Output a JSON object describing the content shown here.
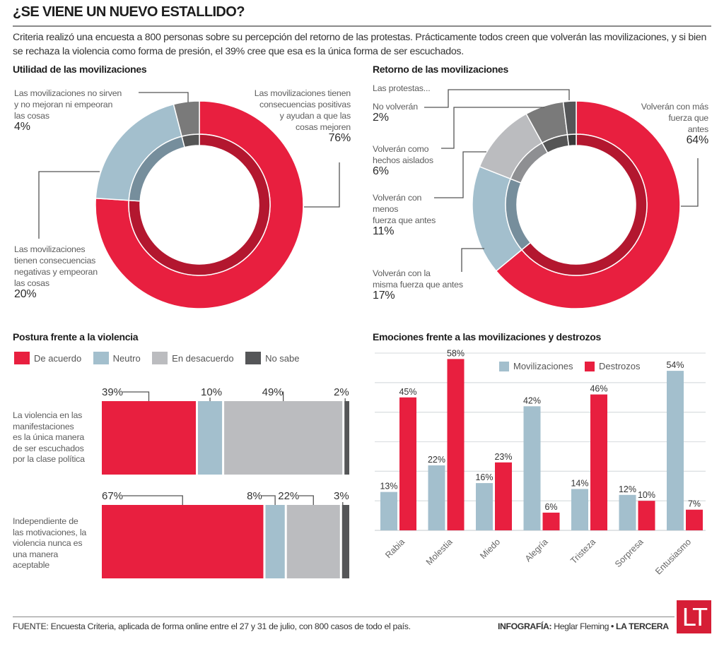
{
  "title": "¿SE VIENE UN NUEVO ESTALLIDO?",
  "intro": "Criteria realizó una encuesta a 800 personas sobre su percepción del retorno de las protestas. Prácticamente todos creen que volverán las movilizaciones, y si bien se rechaza la violencia como forma de presión, el 39% cree que esa es la única forma de ser escuchados.",
  "colors": {
    "red": "#e81f3f",
    "red_dark": "#b3172f",
    "blue": "#a3bfcd",
    "blue_dark": "#768e9c",
    "gray_light": "#bbbcbf",
    "gray_light_dark": "#8e8f92",
    "gray_mid": "#7a7a7a",
    "gray_mid_dark": "#555555",
    "gray_dark": "#555658",
    "gray_dark_dark": "#3a3a3a"
  },
  "chart_data": [
    {
      "type": "pie",
      "variant": "donut",
      "title": "Utilidad de las movilizaciones",
      "slices": [
        {
          "label": "Las movilizaciones tienen consecuencias positivas y ayudan a que las cosas mejoren",
          "value": 76,
          "display": "76%",
          "color": "red"
        },
        {
          "label": "Las movilizaciones tienen consecuencias negativas y empeoran las cosas",
          "value": 20,
          "display": "20%",
          "color": "blue"
        },
        {
          "label": "Las movilizaciones no sirven y no mejoran ni empeoran las cosas",
          "value": 4,
          "display": "4%",
          "color": "gray_mid"
        }
      ]
    },
    {
      "type": "pie",
      "variant": "donut",
      "title": "Retorno de las movilizaciones",
      "subtitle": "Las protestas...",
      "slices": [
        {
          "label": "Volverán con más fuerza que antes",
          "value": 64,
          "display": "64%",
          "color": "red"
        },
        {
          "label": "Volverán con la misma fuerza que antes",
          "value": 17,
          "display": "17%",
          "color": "blue"
        },
        {
          "label": "Volverán con menos fuerza que antes",
          "value": 11,
          "display": "11%",
          "color": "gray_light"
        },
        {
          "label": "Volverán como hechos aislados",
          "value": 6,
          "display": "6%",
          "color": "gray_mid"
        },
        {
          "label": "No volverán",
          "value": 2,
          "display": "2%",
          "color": "gray_dark"
        }
      ]
    },
    {
      "type": "bar",
      "orientation": "horizontal",
      "stacked": true,
      "title": "Postura frente a la violencia",
      "legend": [
        "De acuerdo",
        "Neutro",
        "En desacuerdo",
        "No sabe"
      ],
      "legend_colors": [
        "red",
        "blue",
        "gray_light",
        "gray_dark"
      ],
      "legend_position": "top-left",
      "categories": [
        "La violencia en las manifestaciones es la única manera de ser escuchados por la clase política",
        "Independiente de las motivaciones, la violencia nunca es una manera aceptable"
      ],
      "series": [
        {
          "name": "De acuerdo",
          "values": [
            39,
            67
          ],
          "display": [
            "39%",
            "67%"
          ]
        },
        {
          "name": "Neutro",
          "values": [
            10,
            8
          ],
          "display": [
            "10%",
            "8%"
          ]
        },
        {
          "name": "En desacuerdo",
          "values": [
            49,
            22
          ],
          "display": [
            "49%",
            "22%"
          ]
        },
        {
          "name": "No sabe",
          "values": [
            2,
            3
          ],
          "display": [
            "2%",
            "3%"
          ]
        }
      ]
    },
    {
      "type": "bar",
      "orientation": "vertical",
      "title": "Emociones frente a las movilizaciones y destrozos",
      "categories": [
        "Rabia",
        "Molestia",
        "Miedo",
        "Alegría",
        "Tristeza",
        "Sorpresa",
        "Entusiasmo"
      ],
      "series": [
        {
          "name": "Movilizaciones",
          "color": "blue",
          "values": [
            13,
            22,
            16,
            42,
            14,
            12,
            54
          ]
        },
        {
          "name": "Destrozos",
          "color": "red",
          "values": [
            45,
            58,
            23,
            6,
            46,
            10,
            7
          ]
        }
      ],
      "ylim": [
        0,
        60
      ],
      "grid": true,
      "grid_step": 10,
      "legend_position": "top-center",
      "xlabel": "",
      "ylabel": ""
    }
  ],
  "donut1_labels": {
    "neutral": {
      "text_lines": [
        "Las movilizaciones no sirven",
        "y no mejoran ni empeoran",
        "las cosas"
      ],
      "pct": "4%"
    },
    "positive": {
      "text_lines": [
        "Las movilizaciones tienen",
        "consecuencias positivas",
        "y ayudan a que las",
        "cosas mejoren"
      ],
      "pct": "76%"
    },
    "negative": {
      "text_lines": [
        "Las movilizaciones",
        "tienen consecuencias",
        "negativas y empeoran",
        "las cosas"
      ],
      "pct": "20%"
    }
  },
  "donut2_labels": {
    "intro": "Las protestas...",
    "no": {
      "text_lines": [
        "No volverán"
      ],
      "pct": "2%"
    },
    "aislados": {
      "text_lines": [
        "Volverán como",
        "hechos aislados"
      ],
      "pct": "6%"
    },
    "menos": {
      "text_lines": [
        "Volverán con",
        "menos",
        "fuerza que antes"
      ],
      "pct": "11%"
    },
    "misma": {
      "text_lines": [
        "Volverán con la",
        "misma fuerza que antes"
      ],
      "pct": "17%"
    },
    "mas": {
      "text_lines": [
        "Volverán con más",
        "fuerza que",
        "antes"
      ],
      "pct": "64%"
    }
  },
  "hbar_row_labels": [
    [
      "La violencia en las",
      "manifestaciones",
      "es la única manera",
      "de ser escuchados",
      "por la clase política"
    ],
    [
      "Independiente de",
      "las motivaciones, la",
      "violencia nunca es",
      "una manera",
      "aceptable"
    ]
  ],
  "footer": {
    "source_label": "FUENTE:",
    "source": "Encuesta Criteria, aplicada de forma online entre el 27 y 31 de julio, con 800 casos de todo el país.",
    "credit_label": "INFOGRAFÍA:",
    "credit_author": "Heglar Fleming",
    "credit_sep": "•",
    "publisher": "LA TERCERA",
    "logo": "LT"
  }
}
